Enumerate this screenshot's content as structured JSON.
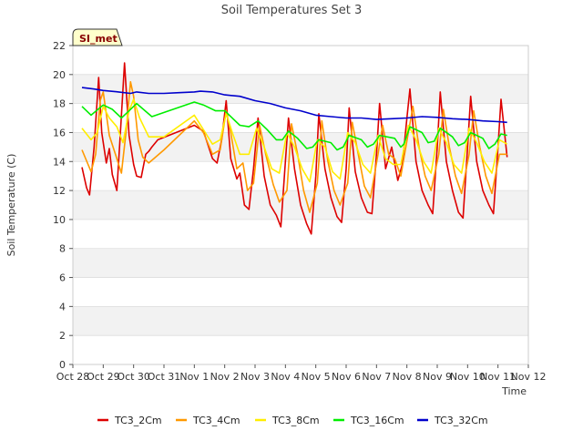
{
  "chart_data": {
    "type": "line",
    "title": "Soil Temperatures Set 3",
    "xlabel": "Time",
    "ylabel": "Soil Temperature (C)",
    "badge": "SI_met",
    "ylim": [
      0,
      22
    ],
    "yticks": [
      0,
      2,
      4,
      6,
      8,
      10,
      12,
      14,
      16,
      18,
      20,
      22
    ],
    "xlim": [
      0,
      15
    ],
    "xticks": [
      {
        "x": 0,
        "label": "Oct 28"
      },
      {
        "x": 1,
        "label": "Oct 29"
      },
      {
        "x": 2,
        "label": "Oct 30"
      },
      {
        "x": 3,
        "label": "Oct 31"
      },
      {
        "x": 4,
        "label": "Nov 1"
      },
      {
        "x": 5,
        "label": "Nov 2"
      },
      {
        "x": 6,
        "label": "Nov 3"
      },
      {
        "x": 7,
        "label": "Nov 4"
      },
      {
        "x": 8,
        "label": "Nov 5"
      },
      {
        "x": 9,
        "label": "Nov 6"
      },
      {
        "x": 10,
        "label": "Nov 7"
      },
      {
        "x": 11,
        "label": "Nov 8"
      },
      {
        "x": 12,
        "label": "Nov 9"
      },
      {
        "x": 13,
        "label": "Nov 10"
      },
      {
        "x": 14,
        "label": "Nov 11"
      },
      {
        "x": 15,
        "label": "Nov 12"
      }
    ],
    "grid": "horizontal bands",
    "legend_position": "bottom",
    "series": [
      {
        "name": "TC3_2Cm",
        "color": "#dd0000",
        "x": [
          0.3,
          0.45,
          0.55,
          0.7,
          0.85,
          0.95,
          1.1,
          1.2,
          1.3,
          1.45,
          1.55,
          1.7,
          1.85,
          2.0,
          2.1,
          2.25,
          2.4,
          2.5,
          2.6,
          2.8,
          4.0,
          4.3,
          4.6,
          4.75,
          4.9,
          5.05,
          5.2,
          5.4,
          5.5,
          5.65,
          5.8,
          5.95,
          6.1,
          6.3,
          6.5,
          6.7,
          6.85,
          7.0,
          7.1,
          7.3,
          7.5,
          7.7,
          7.85,
          8.0,
          8.1,
          8.3,
          8.5,
          8.7,
          8.85,
          9.0,
          9.1,
          9.3,
          9.5,
          9.7,
          9.85,
          10.0,
          10.1,
          10.3,
          10.5,
          10.7,
          10.85,
          11.0,
          11.1,
          11.3,
          11.5,
          11.7,
          11.85,
          12.0,
          12.1,
          12.3,
          12.5,
          12.7,
          12.85,
          13.0,
          13.1,
          13.3,
          13.5,
          13.7,
          13.85,
          14.0,
          14.1,
          14.3
        ],
        "y": [
          13.6,
          12.2,
          11.7,
          15.0,
          19.8,
          16.0,
          13.9,
          14.9,
          13.1,
          12.0,
          15.5,
          20.8,
          15.8,
          13.8,
          13.0,
          12.9,
          14.5,
          14.7,
          15.0,
          15.5,
          16.5,
          16.1,
          14.2,
          13.9,
          15.5,
          18.2,
          14.2,
          12.8,
          13.2,
          11.0,
          10.7,
          13.5,
          17.0,
          13.0,
          11.0,
          10.3,
          9.5,
          14.0,
          17.0,
          13.5,
          11.0,
          9.7,
          9.0,
          13.0,
          17.3,
          13.5,
          11.5,
          10.2,
          9.8,
          13.5,
          17.7,
          13.3,
          11.5,
          10.5,
          10.4,
          14.5,
          18.0,
          13.5,
          15.0,
          12.7,
          13.8,
          17.0,
          19.0,
          14.0,
          12.0,
          11.0,
          10.4,
          15.0,
          18.8,
          14.0,
          12.0,
          10.5,
          10.1,
          15.0,
          18.5,
          14.0,
          12.0,
          11.0,
          10.4,
          15.0,
          18.3,
          14.3
        ]
      },
      {
        "name": "TC3_4Cm",
        "color": "#ff9900",
        "x": [
          0.3,
          0.6,
          0.75,
          0.9,
          1.0,
          1.2,
          1.4,
          1.6,
          1.75,
          1.9,
          2.0,
          2.15,
          2.3,
          2.5,
          3.0,
          4.0,
          4.3,
          4.6,
          4.85,
          5.05,
          5.2,
          5.4,
          5.6,
          5.75,
          5.95,
          6.15,
          6.35,
          6.6,
          6.8,
          7.05,
          7.2,
          7.4,
          7.6,
          7.8,
          8.05,
          8.2,
          8.4,
          8.6,
          8.8,
          9.05,
          9.2,
          9.4,
          9.6,
          9.8,
          10.05,
          10.2,
          10.4,
          10.6,
          10.8,
          11.05,
          11.2,
          11.4,
          11.6,
          11.8,
          12.05,
          12.2,
          12.4,
          12.6,
          12.8,
          13.05,
          13.2,
          13.4,
          13.6,
          13.8,
          14.05,
          14.2,
          14.3
        ],
        "y": [
          14.8,
          13.3,
          14.5,
          18.2,
          18.8,
          15.8,
          14.5,
          13.2,
          16.0,
          19.5,
          18.5,
          15.5,
          14.3,
          13.9,
          14.8,
          16.8,
          16.0,
          14.5,
          14.8,
          17.5,
          16.0,
          13.5,
          13.9,
          12.0,
          12.5,
          16.5,
          14.5,
          12.4,
          11.2,
          12.0,
          16.6,
          14.5,
          12.0,
          10.5,
          12.5,
          16.8,
          14.0,
          12.0,
          11.0,
          12.5,
          16.7,
          14.5,
          12.3,
          11.5,
          14.5,
          16.5,
          14.5,
          14.2,
          13.0,
          16.0,
          17.8,
          15.0,
          13.0,
          12.0,
          14.5,
          17.6,
          15.0,
          13.0,
          11.8,
          14.5,
          17.5,
          15.0,
          13.0,
          11.8,
          14.5,
          14.5,
          14.5
        ]
      },
      {
        "name": "TC3_8Cm",
        "color": "#ffee00",
        "x": [
          0.3,
          0.6,
          0.8,
          1.0,
          1.2,
          1.45,
          1.65,
          1.85,
          2.0,
          2.2,
          2.5,
          3.0,
          4.0,
          4.3,
          4.6,
          4.85,
          5.05,
          5.25,
          5.5,
          5.8,
          6.05,
          6.3,
          6.55,
          6.8,
          7.05,
          7.3,
          7.55,
          7.8,
          8.05,
          8.3,
          8.55,
          8.8,
          9.05,
          9.3,
          9.55,
          9.8,
          10.05,
          10.3,
          10.55,
          10.8,
          11.05,
          11.3,
          11.55,
          11.8,
          12.05,
          12.3,
          12.55,
          12.8,
          13.05,
          13.3,
          13.55,
          13.8,
          14.05,
          14.3
        ],
        "y": [
          16.3,
          15.5,
          16.0,
          17.8,
          17.0,
          16.4,
          15.3,
          17.5,
          18.3,
          17.0,
          15.7,
          15.7,
          17.2,
          16.2,
          15.2,
          15.5,
          17.3,
          16.0,
          14.5,
          14.5,
          16.3,
          15.0,
          13.5,
          13.2,
          16.0,
          15.0,
          13.5,
          12.6,
          15.5,
          15.0,
          13.3,
          12.8,
          16.0,
          15.3,
          13.8,
          13.2,
          15.8,
          14.2,
          13.8,
          13.8,
          16.5,
          15.5,
          14.0,
          13.2,
          16.3,
          15.3,
          13.8,
          13.2,
          16.3,
          15.3,
          14.0,
          13.2,
          15.5,
          15.2
        ]
      },
      {
        "name": "TC3_16Cm",
        "color": "#00ee00",
        "x": [
          0.3,
          0.6,
          1.0,
          1.3,
          1.6,
          1.8,
          2.1,
          2.6,
          4.0,
          4.3,
          4.7,
          5.0,
          5.5,
          5.8,
          6.1,
          6.4,
          6.7,
          6.9,
          7.1,
          7.4,
          7.7,
          7.9,
          8.1,
          8.5,
          8.7,
          8.9,
          9.1,
          9.5,
          9.7,
          9.9,
          10.1,
          10.6,
          10.8,
          10.9,
          11.1,
          11.5,
          11.7,
          11.9,
          12.1,
          12.5,
          12.7,
          12.9,
          13.1,
          13.5,
          13.7,
          13.9,
          14.1,
          14.3
        ],
        "y": [
          17.8,
          17.2,
          17.9,
          17.6,
          17.0,
          17.4,
          18.0,
          17.1,
          18.1,
          17.9,
          17.5,
          17.5,
          16.5,
          16.4,
          16.8,
          16.2,
          15.5,
          15.5,
          16.1,
          15.6,
          14.9,
          15.0,
          15.5,
          15.3,
          14.8,
          15.0,
          15.8,
          15.5,
          15.0,
          15.2,
          15.8,
          15.6,
          15.0,
          15.2,
          16.4,
          16.0,
          15.3,
          15.4,
          16.3,
          15.7,
          15.1,
          15.3,
          16.0,
          15.6,
          14.9,
          15.2,
          15.9,
          15.8
        ]
      },
      {
        "name": "TC3_32Cm",
        "color": "#0000cc",
        "x": [
          0.3,
          0.7,
          1.0,
          1.5,
          1.9,
          2.1,
          2.5,
          3.0,
          3.5,
          4.0,
          4.2,
          4.6,
          5.0,
          5.5,
          6.0,
          6.5,
          7.0,
          7.5,
          8.0,
          8.5,
          9.0,
          9.5,
          10.0,
          10.5,
          11.0,
          11.5,
          12.0,
          12.5,
          13.0,
          13.5,
          14.0,
          14.3
        ],
        "y": [
          19.1,
          19.0,
          18.9,
          18.8,
          18.7,
          18.8,
          18.7,
          18.7,
          18.75,
          18.8,
          18.85,
          18.8,
          18.6,
          18.5,
          18.2,
          18.0,
          17.7,
          17.5,
          17.2,
          17.1,
          17.0,
          17.0,
          16.9,
          16.95,
          17.0,
          17.1,
          17.05,
          16.95,
          16.9,
          16.8,
          16.75,
          16.7
        ]
      }
    ]
  }
}
